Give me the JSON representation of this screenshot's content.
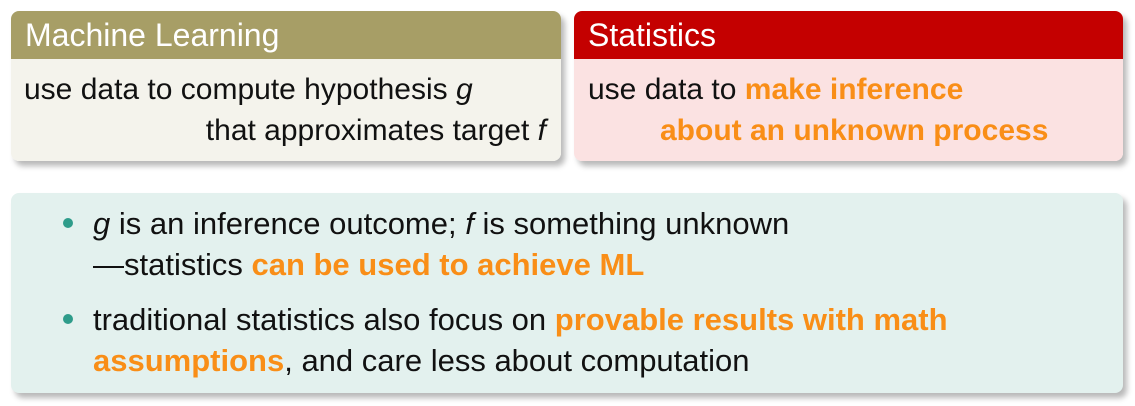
{
  "colors": {
    "ml_header": "#a79e66",
    "ml_body": "#f4f3ec",
    "stat_header": "#c40000",
    "stat_body": "#fbe2e2",
    "bullet_box": "#e3f1ee",
    "highlight": "#f98e17",
    "bullet": "#2e9c8a"
  },
  "ml_box": {
    "title": "Machine Learning",
    "line1_text": "use data to compute hypothesis ",
    "line1_var": "g",
    "line2_text": "that approximates target ",
    "line2_var": "f"
  },
  "stat_box": {
    "title": "Statistics",
    "line1_text": "use data to ",
    "line1_highlight": "make inference",
    "line2_highlight": "about an unknown process"
  },
  "bullets": [
    {
      "var_g": "g",
      "text_a": " is an inference outcome; ",
      "var_f": "f",
      "text_b": " is something unknown",
      "line2_text": "—statistics ",
      "line2_highlight": "can be used to achieve ML"
    },
    {
      "text_a": "traditional statistics also focus on ",
      "highlight_a": "provable results with math",
      "highlight_b": "assumptions",
      "text_b": ", and care less about computation"
    }
  ]
}
